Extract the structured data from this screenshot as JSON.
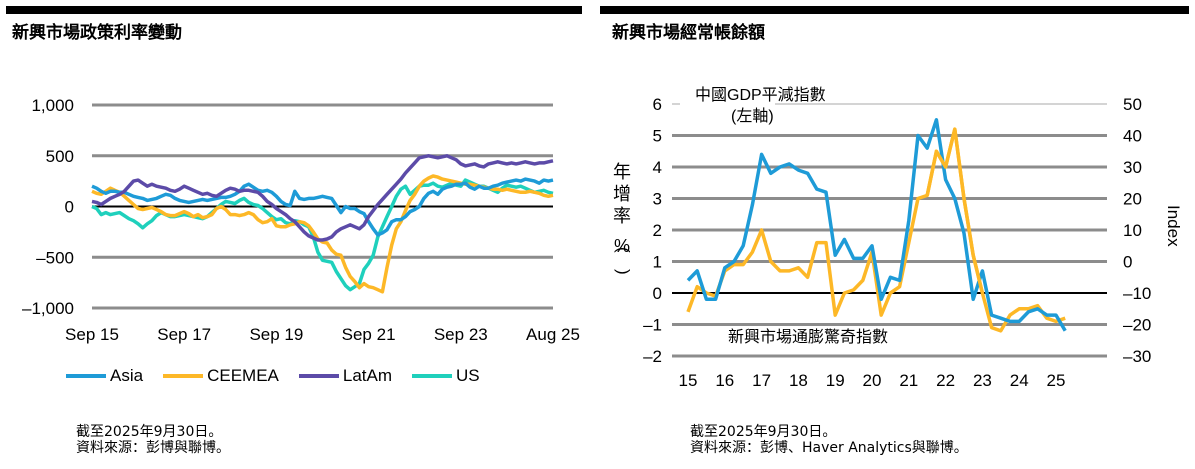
{
  "left": {
    "title": "新興市場政策利率變動",
    "notes": [
      "截至2025年9月30日。",
      "資料來源：彭博與聯博。"
    ]
  },
  "right": {
    "title": "新興市場經常帳餘額",
    "notes": [
      "截至2025年9月30日。",
      "資料來源：彭博、Haver Analytics與聯博。"
    ],
    "annotations": {
      "china": "中國GDP平減指數",
      "china_axis": "(左軸)",
      "em": "新興市場通膨驚奇指數",
      "left_ylabel": [
        "年",
        "增",
        "率",
        "(",
        "%",
        ")"
      ],
      "right_ylabel": "Index"
    }
  },
  "chart_data": [
    {
      "type": "line",
      "title": "新興市場政策利率變動",
      "xlabel": "",
      "ylabel": "",
      "x_ticks": [
        "Sep 15",
        "Sep 17",
        "Sep 19",
        "Sep 21",
        "Sep 23",
        "Aug 25"
      ],
      "y_ticks": [
        "1,000",
        "500",
        "0",
        "–500",
        "–1,000"
      ],
      "y_tick_values": [
        1000,
        500,
        0,
        -500,
        -1000
      ],
      "ylim": [
        -1000,
        1000
      ],
      "x_range": [
        0,
        120
      ],
      "grid": true,
      "legend_position": "bottom",
      "series": [
        {
          "name": "Asia",
          "color": "#1e9bd7",
          "values": [
            200,
            180,
            150,
            130,
            150,
            150,
            140,
            140,
            120,
            100,
            90,
            80,
            60,
            70,
            80,
            100,
            120,
            110,
            80,
            60,
            50,
            40,
            50,
            60,
            70,
            60,
            70,
            80,
            90,
            90,
            100,
            120,
            150,
            200,
            220,
            190,
            160,
            150,
            160,
            140,
            100,
            50,
            20,
            10,
            150,
            80,
            70,
            80,
            80,
            90,
            100,
            90,
            80,
            10,
            -60,
            0,
            -20,
            -20,
            -50,
            -70,
            -150,
            -220,
            -280,
            -260,
            -230,
            -150,
            -130,
            -130,
            -100,
            -50,
            -30,
            0,
            80,
            130,
            150,
            120,
            170,
            190,
            200,
            220,
            220,
            230,
            190,
            170,
            200,
            180,
            180,
            200,
            210,
            230,
            240,
            250,
            260,
            250,
            270,
            260,
            250,
            230,
            260,
            250,
            260
          ]
        },
        {
          "name": "CEEMEA",
          "color": "#fdb827",
          "values": [
            150,
            130,
            120,
            150,
            180,
            160,
            140,
            100,
            60,
            20,
            -20,
            -30,
            -20,
            -10,
            -30,
            -50,
            -80,
            -90,
            -90,
            -70,
            -50,
            -70,
            -100,
            -80,
            -110,
            -100,
            -80,
            -20,
            0,
            -30,
            -80,
            -80,
            -90,
            -80,
            -60,
            -80,
            -130,
            -160,
            -150,
            -120,
            -190,
            -200,
            -200,
            -180,
            -170,
            -150,
            -160,
            -190,
            -250,
            -320,
            -350,
            -360,
            -430,
            -470,
            -480,
            -600,
            -690,
            -740,
            -800,
            -760,
            -790,
            -800,
            -820,
            -840,
            -600,
            -380,
            -220,
            -150,
            -40,
            60,
            120,
            200,
            250,
            280,
            300,
            290,
            270,
            260,
            250,
            240,
            230,
            220,
            220,
            210,
            200,
            190,
            180,
            170,
            170,
            160,
            170,
            160,
            150,
            140,
            140,
            150,
            140,
            130,
            110,
            100,
            110
          ]
        },
        {
          "name": "LatAm",
          "color": "#5c4ba8",
          "values": [
            50,
            40,
            20,
            50,
            80,
            100,
            120,
            150,
            200,
            250,
            260,
            230,
            200,
            220,
            200,
            190,
            180,
            160,
            150,
            170,
            200,
            180,
            160,
            140,
            120,
            130,
            110,
            100,
            130,
            160,
            180,
            170,
            150,
            160,
            160,
            150,
            140,
            100,
            50,
            20,
            -20,
            -50,
            -80,
            -120,
            -150,
            -200,
            -250,
            -290,
            -310,
            -330,
            -330,
            -320,
            -300,
            -250,
            -220,
            -200,
            -180,
            -200,
            -220,
            -180,
            -100,
            -40,
            20,
            70,
            120,
            170,
            220,
            270,
            330,
            380,
            430,
            480,
            490,
            500,
            490,
            480,
            490,
            500,
            480,
            460,
            420,
            400,
            410,
            420,
            400,
            390,
            420,
            430,
            440,
            430,
            420,
            430,
            420,
            430,
            440,
            430,
            420,
            430,
            430,
            440,
            450
          ]
        },
        {
          "name": "US",
          "color": "#1fd0bc",
          "values": [
            0,
            -20,
            -80,
            -60,
            -80,
            -70,
            -60,
            -90,
            -120,
            -140,
            -170,
            -210,
            -170,
            -140,
            -90,
            -60,
            -80,
            -100,
            -100,
            -90,
            -80,
            -90,
            -100,
            -110,
            -120,
            -100,
            -60,
            -20,
            20,
            50,
            40,
            30,
            60,
            80,
            40,
            20,
            10,
            -20,
            -60,
            -100,
            -130,
            -120,
            -160,
            -170,
            -140,
            -150,
            -180,
            -200,
            -300,
            -450,
            -530,
            -540,
            -550,
            -640,
            -710,
            -780,
            -820,
            -790,
            -760,
            -620,
            -560,
            -480,
            -300,
            -200,
            -100,
            0,
            100,
            170,
            200,
            120,
            160,
            200,
            210,
            210,
            230,
            200,
            190,
            210,
            230,
            210,
            200,
            260,
            240,
            220,
            200,
            200,
            180,
            160,
            140,
            180,
            210,
            200,
            190,
            200,
            180,
            160,
            140,
            150,
            160,
            140,
            130
          ]
        }
      ]
    },
    {
      "type": "line",
      "title": "新興市場經常帳餘額",
      "xlabel": "",
      "ylabel": "年增率(%)",
      "y2label": "Index",
      "x_ticks": [
        "15",
        "16",
        "17",
        "18",
        "19",
        "20",
        "21",
        "22",
        "23",
        "24",
        "25"
      ],
      "y_ticks": [
        "6",
        "5",
        "4",
        "3",
        "2",
        "1",
        "0",
        "–1",
        "–2"
      ],
      "y_tick_values": [
        6,
        5,
        4,
        3,
        2,
        1,
        0,
        -1,
        -2
      ],
      "ylim": [
        -2,
        6
      ],
      "y2_ticks": [
        "50",
        "40",
        "30",
        "20",
        "10",
        "0",
        "–10",
        "–20",
        "–30"
      ],
      "y2_tick_values": [
        50,
        40,
        30,
        20,
        10,
        0,
        -10,
        -20,
        -30
      ],
      "y2lim": [
        -30,
        50
      ],
      "x_range": [
        2015,
        2025.5
      ],
      "grid": true,
      "series": [
        {
          "name": "中國GDP平減指數 (左軸)",
          "axis": "left",
          "color": "#1e9bd7",
          "x": [
            2015.0,
            2015.25,
            2015.5,
            2015.75,
            2016.0,
            2016.25,
            2016.5,
            2016.75,
            2017.0,
            2017.25,
            2017.5,
            2017.75,
            2018.0,
            2018.25,
            2018.5,
            2018.75,
            2019.0,
            2019.25,
            2019.5,
            2019.75,
            2020.0,
            2020.25,
            2020.5,
            2020.75,
            2021.0,
            2021.25,
            2021.5,
            2021.75,
            2022.0,
            2022.25,
            2022.5,
            2022.75,
            2023.0,
            2023.25,
            2023.5,
            2023.75,
            2024.0,
            2024.25,
            2024.5,
            2024.75,
            2025.0,
            2025.25
          ],
          "values": [
            0.4,
            0.7,
            -0.2,
            -0.2,
            0.8,
            1.0,
            1.5,
            2.8,
            4.4,
            3.8,
            4.0,
            4.1,
            3.9,
            3.8,
            3.3,
            3.2,
            1.2,
            1.7,
            1.1,
            1.1,
            1.5,
            -0.2,
            0.5,
            0.4,
            2.3,
            5.0,
            4.6,
            5.5,
            3.6,
            3.0,
            1.9,
            -0.2,
            0.7,
            -0.7,
            -0.8,
            -0.9,
            -0.9,
            -0.6,
            -0.5,
            -0.7,
            -0.7,
            -1.2
          ]
        },
        {
          "name": "新興市場通膨驚奇指數",
          "axis": "right",
          "color": "#fdb827",
          "x": [
            2015.0,
            2015.25,
            2015.5,
            2015.75,
            2016.0,
            2016.25,
            2016.5,
            2016.75,
            2017.0,
            2017.25,
            2017.5,
            2017.75,
            2018.0,
            2018.25,
            2018.5,
            2018.75,
            2019.0,
            2019.25,
            2019.5,
            2019.75,
            2020.0,
            2020.25,
            2020.5,
            2020.75,
            2021.0,
            2021.25,
            2021.5,
            2021.75,
            2022.0,
            2022.25,
            2022.5,
            2022.75,
            2023.0,
            2023.25,
            2023.5,
            2023.75,
            2024.0,
            2024.25,
            2024.5,
            2024.75,
            2025.0,
            2025.25
          ],
          "values": [
            -16,
            -8,
            -10,
            -11,
            -3,
            -1,
            -1,
            3,
            10,
            0,
            -3,
            -3,
            -2,
            -5,
            6,
            6,
            -17,
            -10,
            -9,
            -6,
            3,
            -17,
            -10,
            -8,
            6,
            20,
            21,
            35,
            30,
            42,
            20,
            2,
            -10,
            -21,
            -22,
            -17,
            -15,
            -15,
            -14,
            -18,
            -19,
            -18
          ]
        }
      ]
    }
  ]
}
